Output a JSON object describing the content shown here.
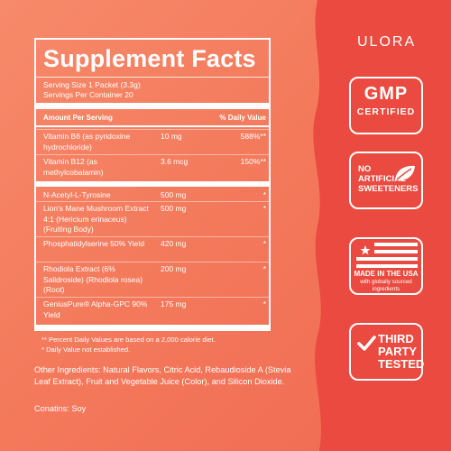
{
  "colors": {
    "background": "#f47a5c",
    "right_panel": "#ea4a3f",
    "text": "#ffffff"
  },
  "facts": {
    "title": "Supplement Facts",
    "serving_size": "Serving Size 1 Packet (3.3g)",
    "servings_per_container": "Servings Per Container 20",
    "header_amount": "Amount Per Serving",
    "header_dv": "% Daily Value",
    "rows": [
      {
        "name": "Vitamin B6 (as pyridoxine hydrochloride)",
        "amount": "10 mg",
        "dv": "588%**"
      },
      {
        "name": "Vitamin B12 (as methylcobalamin)",
        "amount": "3.6 mcg",
        "dv": "150%**"
      },
      {
        "name": "N-Acetyl-L-Tyrosine",
        "amount": "500 mg",
        "dv": "*"
      },
      {
        "name": "Lion's Mane Mushroom Extract 4:1 (Hericium erinaceus) (Fruiting Body)",
        "amount": "500 mg",
        "dv": "*"
      },
      {
        "name": "Phosphatidylserine 50% Yield",
        "amount": "420 mg",
        "dv": "*"
      },
      {
        "name": "Rhodiola Extract (6% Salidroside) (Rhodiola rosea) (Root)",
        "amount": "200 mg",
        "dv": "*"
      },
      {
        "name": "GeniusPure® Alpha-GPC 90% Yield",
        "amount": "175 mg",
        "dv": "*"
      }
    ],
    "footnote_1": "** Percent Daily Values are based on a 2,000 calorie diet.",
    "footnote_2": "* Daily Value not established."
  },
  "other_ingredients": "Other Ingredients: Natural Flavors, Citric Acid, Rebaudioside A (Stevia Leaf Extract), Fruit and Vegetable Juice (Color), and Silicon Dioxide.",
  "contains": "Conatins: Soy",
  "badges": {
    "brand": "ULORA",
    "gmp_line1": "GMP",
    "gmp_line2": "CERTIFIED",
    "no_artificial": "NO ARTIFICIAL SWEETENERS",
    "made_in_usa": "MADE IN THE USA",
    "made_in_usa_sub": "with globally sourced ingredients",
    "third_party": "THIRD PARTY TESTED",
    "icons": [
      "leaf-icon",
      "usa-flag-icon",
      "checkmark-icon"
    ]
  }
}
